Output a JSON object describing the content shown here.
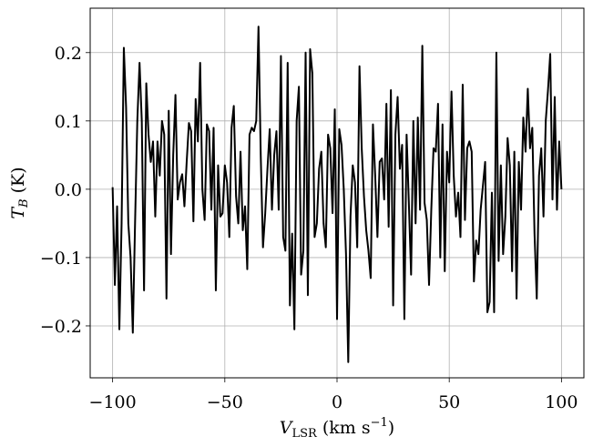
{
  "chart_data": {
    "type": "line",
    "xlabel": {
      "main": "V",
      "sub": "LSR",
      "rest": " (km s",
      "sup": "−1",
      "end": ")"
    },
    "ylabel": {
      "main": "T",
      "sub": "B",
      "rest": " (K)"
    },
    "xlim": [
      -110,
      110
    ],
    "ylim": [
      -0.276,
      0.265
    ],
    "xticks": [
      {
        "value": -100,
        "label": "−100"
      },
      {
        "value": -50,
        "label": "−50"
      },
      0,
      50,
      100
    ],
    "yticks": [
      {
        "value": -0.2,
        "label": "−0.2"
      },
      {
        "value": -0.1,
        "label": "−0.1"
      },
      {
        "value": 0,
        "label": "0.0"
      },
      {
        "value": 0.1,
        "label": "0.1"
      },
      {
        "value": 0.2,
        "label": "0.2"
      }
    ],
    "grid": true,
    "series": [
      {
        "color": "#000000",
        "x": [
          -100,
          -99,
          -98,
          -97,
          -96,
          -95,
          -94,
          -93,
          -92,
          -91,
          -90,
          -89,
          -88,
          -87,
          -86,
          -85,
          -84,
          -83,
          -82,
          -81,
          -80,
          -79,
          -78,
          -77,
          -76,
          -75,
          -74,
          -73,
          -72,
          -71,
          -70,
          -69,
          -68,
          -67,
          -66,
          -65,
          -64,
          -63,
          -62,
          -61,
          -60,
          -59,
          -58,
          -57,
          -56,
          -55,
          -54,
          -53,
          -52,
          -51,
          -50,
          -49,
          -48,
          -47,
          -46,
          -45,
          -44,
          -43,
          -42,
          -41,
          -40,
          -39,
          -38,
          -37,
          -36,
          -35,
          -34,
          -33,
          -32,
          -31,
          -30,
          -29,
          -28,
          -27,
          -26,
          -25,
          -24,
          -23,
          -22,
          -21,
          -20,
          -19,
          -18,
          -17,
          -16,
          -15,
          -14,
          -13,
          -12,
          -11,
          -10,
          -9,
          -8,
          -7,
          -6,
          -5,
          -4,
          -3,
          -2,
          -1,
          0,
          1,
          2,
          3,
          4,
          5,
          6,
          7,
          8,
          9,
          10,
          11,
          12,
          13,
          14,
          15,
          16,
          17,
          18,
          19,
          20,
          21,
          22,
          23,
          24,
          25,
          26,
          27,
          28,
          29,
          30,
          31,
          32,
          33,
          34,
          35,
          36,
          37,
          38,
          39,
          40,
          41,
          42,
          43,
          44,
          45,
          46,
          47,
          48,
          49,
          50,
          51,
          52,
          53,
          54,
          55,
          56,
          57,
          58,
          59,
          60,
          61,
          62,
          63,
          64,
          65,
          66,
          67,
          68,
          69,
          70,
          71,
          72,
          73,
          74,
          75,
          76,
          77,
          78,
          79,
          80,
          81,
          82,
          83,
          84,
          85,
          86,
          87,
          88,
          89,
          90,
          91,
          92,
          93,
          94,
          95,
          96,
          97,
          98,
          99,
          100
        ],
        "values": [
          0.003,
          -0.14,
          -0.025,
          -0.205,
          -0.05,
          0.207,
          0.12,
          -0.05,
          -0.1,
          -0.21,
          -0.05,
          0.1,
          0.185,
          0.1,
          -0.148,
          0.155,
          0.08,
          0.04,
          0.07,
          -0.04,
          0.07,
          0.02,
          0.1,
          0.08,
          -0.16,
          0.115,
          -0.095,
          0.05,
          0.138,
          -0.015,
          0.01,
          0.022,
          -0.025,
          0.04,
          0.097,
          0.085,
          -0.047,
          0.132,
          0.07,
          0.185,
          0,
          -0.045,
          0.095,
          0.085,
          -0.03,
          0.09,
          -0.148,
          0.035,
          -0.04,
          -0.035,
          0.035,
          0.01,
          -0.07,
          0.09,
          0.122,
          -0.01,
          -0.05,
          0.055,
          -0.06,
          -0.025,
          -0.117,
          0.08,
          0.09,
          0.085,
          0.1,
          0.238,
          0.05,
          -0.085,
          -0.035,
          0.03,
          0.088,
          -0.03,
          0.05,
          0.085,
          -0.03,
          0.195,
          -0.07,
          -0.09,
          0.185,
          -0.17,
          -0.065,
          -0.205,
          0.1,
          0.15,
          -0.125,
          -0.09,
          0.2,
          -0.155,
          0.205,
          0.17,
          -0.07,
          -0.05,
          0.03,
          0.055,
          -0.05,
          -0.085,
          0.08,
          0.06,
          -0.035,
          0.117,
          -0.19,
          0.088,
          0.065,
          0,
          -0.095,
          -0.253,
          -0.04,
          0.035,
          0.01,
          -0.085,
          0.18,
          0.06,
          -0.01,
          -0.06,
          -0.09,
          -0.13,
          0.095,
          0.02,
          -0.07,
          0.04,
          0.045,
          -0.015,
          0.125,
          -0.055,
          0.145,
          -0.17,
          0.08,
          0.135,
          0.03,
          0.065,
          -0.19,
          0.08,
          -0.02,
          -0.125,
          0.1,
          -0.05,
          0.105,
          -0.03,
          0.21,
          -0.02,
          -0.045,
          -0.14,
          -0.03,
          0.06,
          0.055,
          0.125,
          -0.1,
          0.095,
          -0.12,
          0.055,
          0.01,
          0.143,
          0.02,
          -0.04,
          -0.005,
          -0.07,
          0.153,
          -0.045,
          0.06,
          0.07,
          0.055,
          -0.135,
          -0.075,
          -0.095,
          -0.03,
          0.005,
          0.04,
          -0.18,
          -0.165,
          -0.005,
          -0.18,
          0.2,
          -0.105,
          0.035,
          -0.095,
          -0.04,
          0.075,
          0.035,
          -0.12,
          0.055,
          -0.16,
          0.04,
          -0.03,
          0.105,
          0.055,
          0.147,
          0.06,
          0.09,
          -0.065,
          -0.16,
          0.02,
          0.06,
          -0.04,
          0.1,
          0.145,
          0.198,
          -0.015,
          0.135,
          -0.03,
          0.07,
          0
        ]
      }
    ]
  }
}
